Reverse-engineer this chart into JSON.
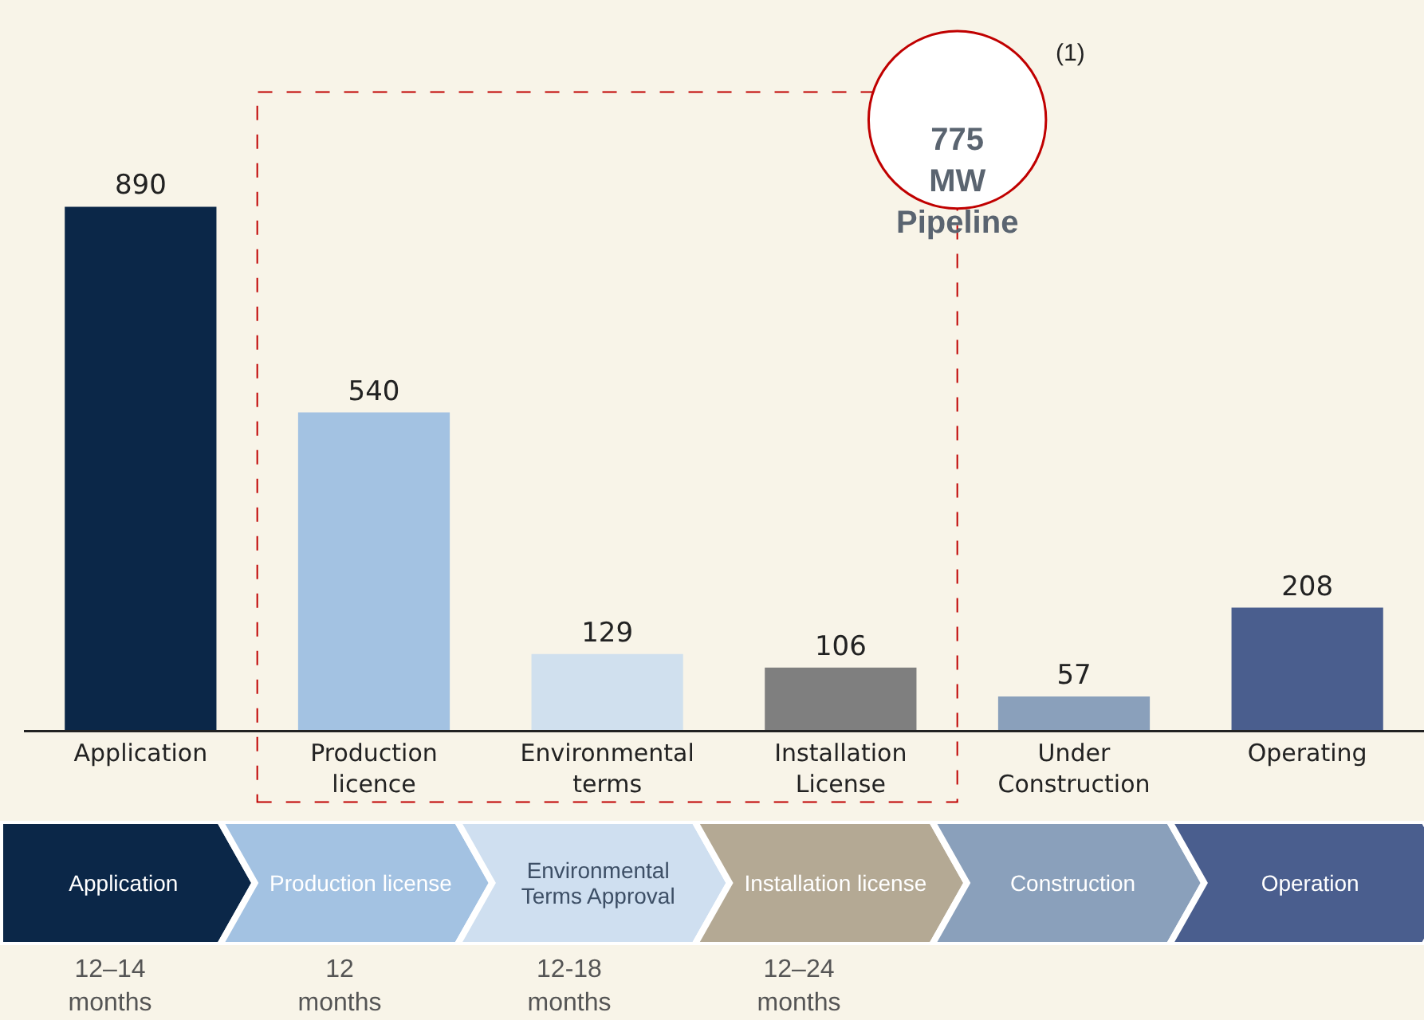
{
  "chart_data": {
    "type": "bar",
    "categories": [
      "Application",
      "Production licence",
      "Environmental terms",
      "Installation License",
      "Under Construction",
      "Operating"
    ],
    "values": [
      890,
      540,
      129,
      106,
      57,
      208
    ],
    "colors": [
      "#0b2748",
      "#a3c2e2",
      "#d0e0ee",
      "#7f7f7f",
      "#8aa0bb",
      "#4a5e8e"
    ],
    "data_labels": true,
    "annotations": [
      "775 MW Pipeline",
      "(1)",
      "Application",
      "Production license",
      "Environmental Terms Approval",
      "Installation license",
      "Construction",
      "Operation",
      "12–14 months",
      "12 months",
      "12-18 months",
      "12–24 months"
    ]
  }
}
